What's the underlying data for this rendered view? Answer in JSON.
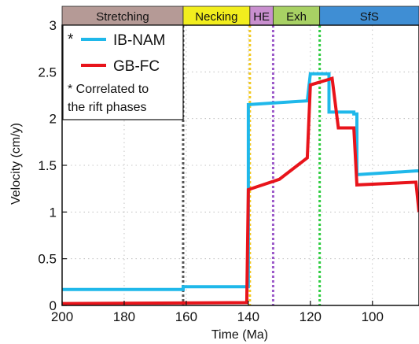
{
  "chart_data": {
    "type": "line",
    "xlabel": "Time (Ma)",
    "ylabel": "Velocity (cm/y)",
    "xlim": [
      200,
      85
    ],
    "ylim": [
      0,
      3
    ],
    "x_ticks": [
      200,
      180,
      160,
      140,
      120,
      100
    ],
    "y_ticks": [
      0,
      0.5,
      1,
      1.5,
      2,
      2.5,
      3
    ],
    "x_tick_labels": [
      "200",
      "180",
      "160",
      "140",
      "120",
      "100"
    ],
    "y_tick_labels": [
      "0",
      "0.5",
      "1",
      "1.5",
      "2",
      "2.5",
      "3"
    ],
    "grid": true,
    "phases": [
      {
        "label": "Stretching",
        "start": 200,
        "end": 161,
        "color": "#b59a96"
      },
      {
        "label": "Necking",
        "start": 161,
        "end": 139.5,
        "color": "#f2ee1e"
      },
      {
        "label": "HE",
        "start": 139.5,
        "end": 132,
        "color": "#c98fcf"
      },
      {
        "label": "Exh",
        "start": 132,
        "end": 117,
        "color": "#a8d164"
      },
      {
        "label": "SfS",
        "start": 117,
        "end": 85,
        "color": "#3f8ed4"
      }
    ],
    "vlines": [
      {
        "x": 161,
        "color": "#555555"
      },
      {
        "x": 139.5,
        "color": "#f2c81e"
      },
      {
        "x": 132,
        "color": "#9b59c9"
      },
      {
        "x": 117,
        "color": "#2ecc40"
      }
    ],
    "series": [
      {
        "name": "IB-NAM",
        "color": "#1fb8ea",
        "x": [
          200,
          161,
          161,
          140,
          140,
          121,
          120,
          114,
          114,
          106,
          106,
          105,
          105,
          86,
          85
        ],
        "y": [
          0.17,
          0.17,
          0.2,
          0.2,
          2.15,
          2.19,
          2.48,
          2.48,
          2.07,
          2.07,
          2.05,
          2.05,
          1.4,
          1.44,
          1.44
        ]
      },
      {
        "name": "GB-FC",
        "color": "#e8141b",
        "x": [
          200,
          140.5,
          140,
          130,
          121,
          120,
          113,
          111,
          111,
          106,
          105,
          86,
          85
        ],
        "y": [
          0.02,
          0.03,
          1.24,
          1.35,
          1.58,
          2.36,
          2.43,
          1.9,
          1.9,
          1.9,
          1.29,
          1.32,
          1.0
        ]
      }
    ],
    "legend": {
      "placement": "top-left",
      "items": [
        {
          "marker": "*",
          "name": "IB-NAM"
        },
        {
          "marker": "",
          "name": "GB-FC"
        }
      ],
      "note_line1": "* Correlated to",
      "note_line2": "the rift phases"
    }
  }
}
